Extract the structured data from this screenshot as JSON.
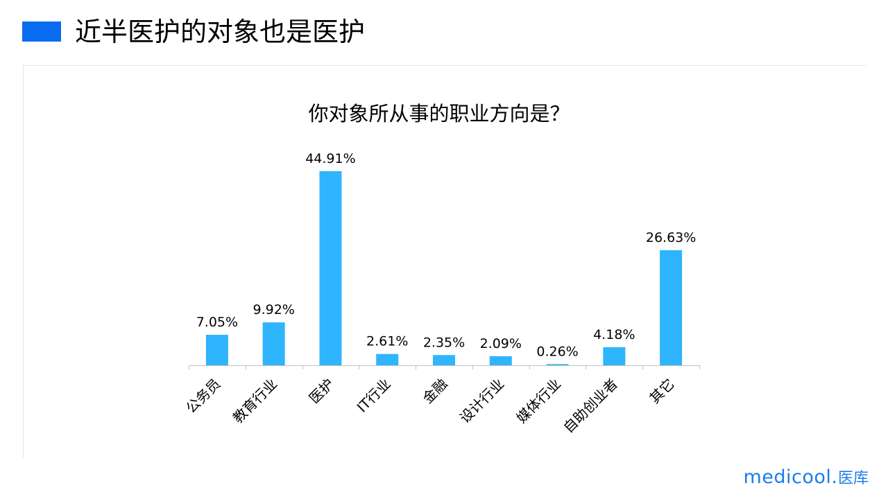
{
  "slide": {
    "title": "近半医护的对象也是医护"
  },
  "logo": {
    "latin": "medicool",
    "separator": ".",
    "cn": "医库"
  },
  "colors": {
    "bar": "#2fb4fe",
    "title_bar": "#0a6cf1",
    "logo": "#1b7de8"
  },
  "chart_data": {
    "type": "bar",
    "title": "你对象所从事的职业方向是？",
    "categories": [
      "公务员",
      "教育行业",
      "医护",
      "IT行业",
      "金融",
      "设计行业",
      "媒体行业",
      "自助创业者",
      "其它"
    ],
    "values": [
      7.05,
      9.92,
      44.91,
      2.61,
      2.35,
      2.09,
      0.26,
      4.18,
      26.63
    ],
    "value_labels": [
      "7.05%",
      "9.92%",
      "44.91%",
      "2.61%",
      "2.35%",
      "2.09%",
      "0.26%",
      "4.18%",
      "26.63%"
    ],
    "unit": "%",
    "ylim": [
      0,
      45
    ],
    "grid": false,
    "legend": "none",
    "xlabel": "",
    "ylabel": ""
  }
}
